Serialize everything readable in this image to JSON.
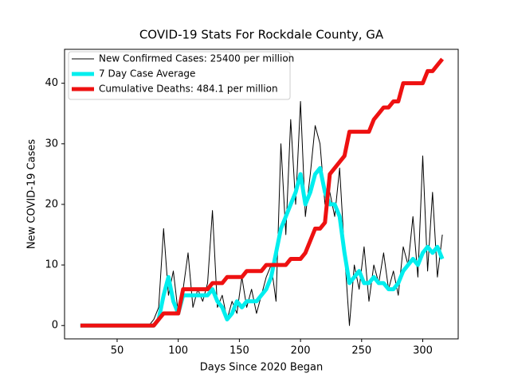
{
  "chart_data": {
    "type": "line",
    "title": "COVID-19 Stats For Rockdale County, GA",
    "x_label": "Days Since 2020 Began",
    "y_label": "New COVID-19 Cases",
    "x": [
      20,
      24,
      28,
      32,
      36,
      40,
      44,
      48,
      52,
      56,
      60,
      64,
      68,
      72,
      76,
      80,
      84,
      88,
      92,
      96,
      100,
      104,
      108,
      112,
      116,
      120,
      124,
      128,
      132,
      136,
      140,
      144,
      148,
      152,
      156,
      160,
      164,
      168,
      172,
      176,
      180,
      184,
      188,
      192,
      196,
      200,
      204,
      208,
      212,
      216,
      220,
      224,
      228,
      232,
      236,
      240,
      244,
      248,
      252,
      256,
      260,
      264,
      268,
      272,
      276,
      280,
      284,
      288,
      292,
      296,
      300,
      304,
      308,
      312,
      316
    ],
    "series": [
      {
        "name": "New Confirmed Cases: 25400 per million",
        "color": "#000000",
        "width": 1,
        "values": [
          0,
          0,
          0,
          0,
          0,
          0,
          0,
          0,
          0,
          0,
          0,
          0,
          0,
          0,
          0,
          1,
          3,
          16,
          5,
          9,
          2,
          6,
          12,
          3,
          6,
          4,
          7,
          19,
          3,
          5,
          1,
          4,
          2,
          8,
          3,
          6,
          2,
          5,
          8,
          10,
          4,
          30,
          15,
          34,
          20,
          37,
          18,
          25,
          33,
          30,
          20,
          22,
          18,
          26,
          12,
          0,
          10,
          6,
          13,
          4,
          10,
          7,
          12,
          6,
          9,
          5,
          13,
          10,
          18,
          8,
          28,
          9,
          22,
          8,
          15
        ]
      },
      {
        "name": "7 Day Case Average",
        "color": "#00eeee",
        "width": 5,
        "values": [
          0,
          0,
          0,
          0,
          0,
          0,
          0,
          0,
          0,
          0,
          0,
          0,
          0,
          0,
          0,
          0,
          1,
          5,
          8,
          4,
          2,
          5,
          5,
          5,
          5,
          5,
          5,
          6,
          4,
          3,
          1,
          2,
          4,
          3,
          4,
          4,
          4,
          5,
          6,
          8,
          12,
          16,
          18,
          20,
          22,
          25,
          20,
          22,
          25,
          26,
          22,
          20,
          20,
          18,
          12,
          7,
          8,
          9,
          7,
          7,
          8,
          7,
          7,
          6,
          6,
          7,
          9,
          10,
          11,
          10,
          12,
          13,
          12,
          13,
          11
        ]
      },
      {
        "name": "Cumulative Deaths: 484.1 per million",
        "color": "#ee1111",
        "width": 5,
        "values": [
          0,
          0,
          0,
          0,
          0,
          0,
          0,
          0,
          0,
          0,
          0,
          0,
          0,
          0,
          0,
          0,
          1,
          2,
          2,
          2,
          2,
          6,
          6,
          6,
          6,
          6,
          6,
          7,
          7,
          7,
          8,
          8,
          8,
          8,
          9,
          9,
          9,
          9,
          10,
          10,
          10,
          10,
          10,
          11,
          11,
          11,
          12,
          14,
          16,
          16,
          17,
          25,
          26,
          27,
          28,
          32,
          32,
          32,
          32,
          32,
          34,
          35,
          36,
          36,
          37,
          37,
          40,
          40,
          40,
          40,
          40,
          42,
          42,
          43,
          44
        ]
      }
    ],
    "xlim": [
      7,
      329
    ],
    "ylim": [
      -2.2,
      45.6
    ],
    "xticks": [
      50,
      100,
      150,
      200,
      250,
      300
    ],
    "yticks": [
      0,
      10,
      20,
      30,
      40
    ],
    "legend": "upper left"
  }
}
